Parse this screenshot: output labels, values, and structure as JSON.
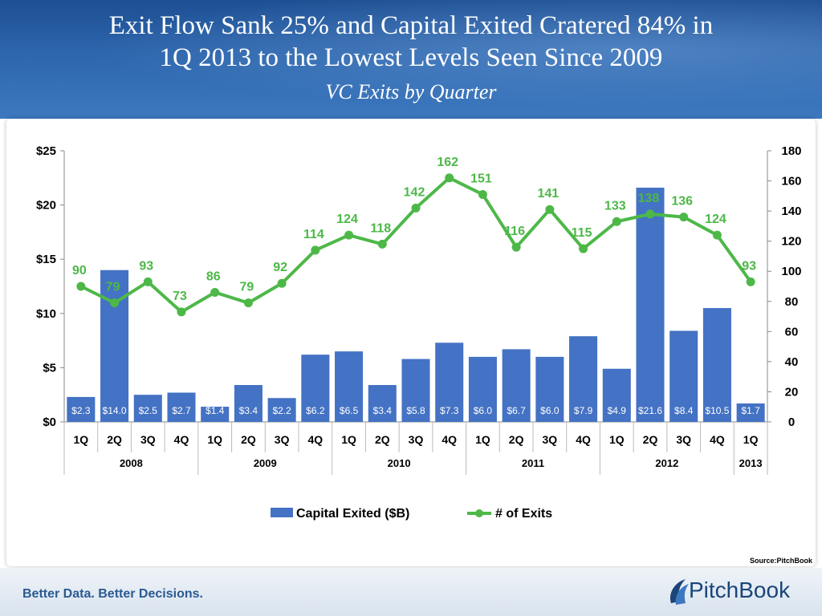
{
  "header": {
    "title_line1": "Exit Flow Sank 25% and Capital Exited Cratered 84% in",
    "title_line2": "1Q 2013 to the Lowest Levels Seen Since 2009",
    "subtitle": "VC Exits by Quarter"
  },
  "footer": {
    "tagline": "Better Data. Better Decisions.",
    "logo_text": "PitchBook",
    "source": "Source:PitchBook"
  },
  "colors": {
    "bar": "#4472c4",
    "line": "#4db848",
    "header": "#2e66ad"
  },
  "chart_data": {
    "type": "bar+line",
    "categories": [
      "1Q",
      "2Q",
      "3Q",
      "4Q",
      "1Q",
      "2Q",
      "3Q",
      "4Q",
      "1Q",
      "2Q",
      "3Q",
      "4Q",
      "1Q",
      "2Q",
      "3Q",
      "4Q",
      "1Q",
      "2Q",
      "3Q",
      "4Q",
      "1Q"
    ],
    "years": [
      {
        "label": "2008",
        "count": 4
      },
      {
        "label": "2009",
        "count": 4
      },
      {
        "label": "2010",
        "count": 4
      },
      {
        "label": "2011",
        "count": 4
      },
      {
        "label": "2012",
        "count": 4
      },
      {
        "label": "2013",
        "count": 1
      }
    ],
    "series": [
      {
        "name": "Capital Exited ($B)",
        "type": "bar",
        "axis": "left",
        "values": [
          2.3,
          14.0,
          2.5,
          2.7,
          1.4,
          3.4,
          2.2,
          6.2,
          6.5,
          3.4,
          5.8,
          7.3,
          6.0,
          6.7,
          6.0,
          7.9,
          4.9,
          21.6,
          8.4,
          10.5,
          1.7
        ],
        "labels": [
          "$2.3",
          "$14.0",
          "$2.5",
          "$2.7",
          "$1.4",
          "$3.4",
          "$2.2",
          "$6.2",
          "$6.5",
          "$3.4",
          "$5.8",
          "$7.3",
          "$6.0",
          "$6.7",
          "$6.0",
          "$7.9",
          "$4.9",
          "$21.6",
          "$8.4",
          "$10.5",
          "$1.7"
        ]
      },
      {
        "name": "# of Exits",
        "type": "line",
        "axis": "right",
        "values": [
          90,
          79,
          93,
          73,
          86,
          79,
          92,
          114,
          124,
          118,
          142,
          162,
          151,
          116,
          141,
          115,
          133,
          138,
          136,
          124,
          93
        ]
      }
    ],
    "left_axis": {
      "min": 0,
      "max": 25,
      "step": 5,
      "ticks": [
        "$0",
        "$5",
        "$10",
        "$15",
        "$20",
        "$25"
      ]
    },
    "right_axis": {
      "min": 0,
      "max": 180,
      "step": 20,
      "ticks": [
        "0",
        "20",
        "40",
        "60",
        "80",
        "100",
        "120",
        "140",
        "160",
        "180"
      ]
    },
    "legend_position": "bottom",
    "grid": false
  }
}
